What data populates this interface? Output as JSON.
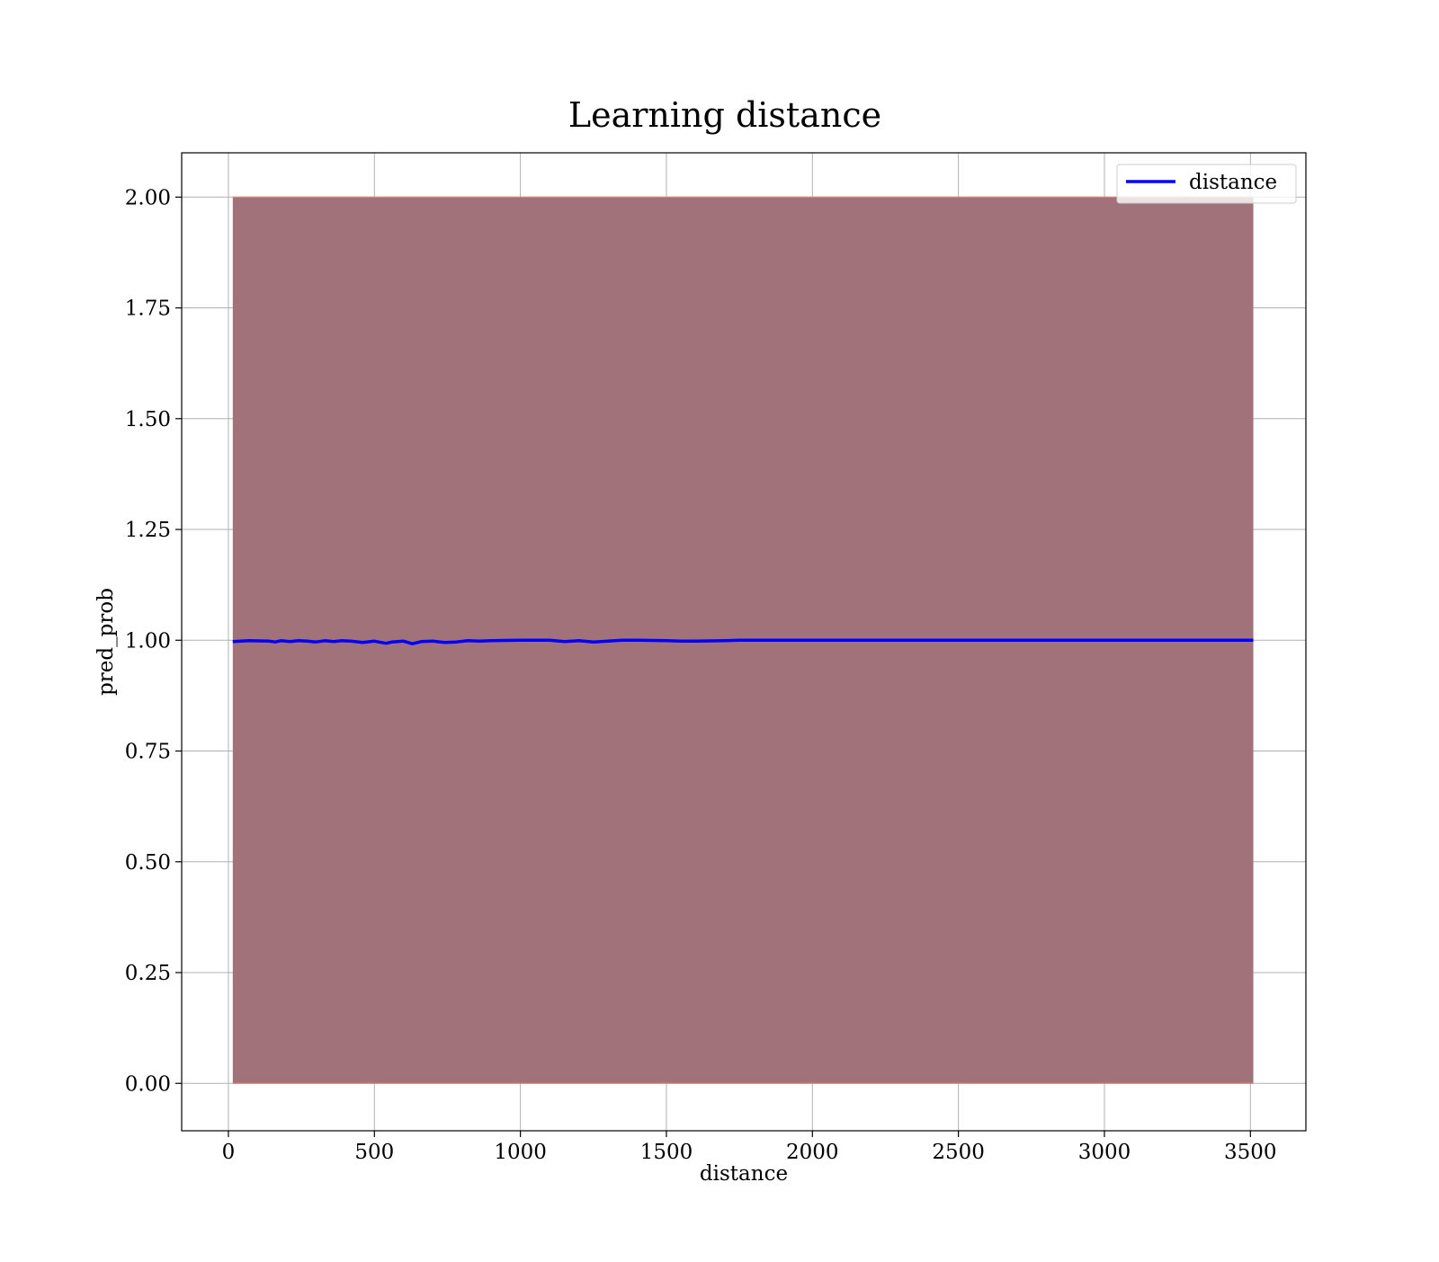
{
  "chart_data": {
    "type": "area",
    "title": "Learning distance",
    "xlabel": "distance",
    "ylabel": "pred_prob",
    "xlim": [
      -160,
      3690
    ],
    "ylim": [
      -0.107,
      2.1
    ],
    "xticks": [
      0,
      500,
      1000,
      1500,
      2000,
      2500,
      3000,
      3500
    ],
    "yticks": [
      0.0,
      0.25,
      0.5,
      0.75,
      1.0,
      1.25,
      1.5,
      1.75,
      2.0
    ],
    "ytick_labels": [
      "0.00",
      "0.25",
      "0.50",
      "0.75",
      "1.00",
      "1.25",
      "1.50",
      "1.75",
      "2.00"
    ],
    "grid": true,
    "legend": {
      "position": "top-right",
      "entries": [
        "distance"
      ]
    },
    "colors": {
      "line": "#0000ff",
      "band_fill": "#a2727b",
      "band_edge": "#d98a70",
      "grid": "#b0b0b0",
      "axes": "#000000"
    },
    "band": {
      "lower": 0.0,
      "upper": 2.0,
      "x_start": 15,
      "x_end": 3510
    },
    "series": [
      {
        "name": "distance",
        "x": [
          15,
          70,
          140,
          160,
          180,
          210,
          240,
          270,
          300,
          330,
          360,
          390,
          420,
          460,
          500,
          540,
          560,
          600,
          630,
          660,
          700,
          740,
          780,
          820,
          860,
          900,
          1000,
          1100,
          1150,
          1200,
          1250,
          1300,
          1350,
          1400,
          1500,
          1550,
          1600,
          1700,
          1750,
          2000,
          2500,
          3000,
          3510
        ],
        "y": [
          0.997,
          0.999,
          0.998,
          0.996,
          0.999,
          0.997,
          0.999,
          0.998,
          0.996,
          0.999,
          0.997,
          0.999,
          0.998,
          0.995,
          0.998,
          0.993,
          0.996,
          0.998,
          0.992,
          0.997,
          0.998,
          0.995,
          0.996,
          0.999,
          0.998,
          0.999,
          1.0,
          1.0,
          0.997,
          0.999,
          0.996,
          0.998,
          1.0,
          1.0,
          0.999,
          0.998,
          0.998,
          0.999,
          1.0,
          1.0,
          1.0,
          1.0,
          1.0
        ]
      }
    ]
  }
}
